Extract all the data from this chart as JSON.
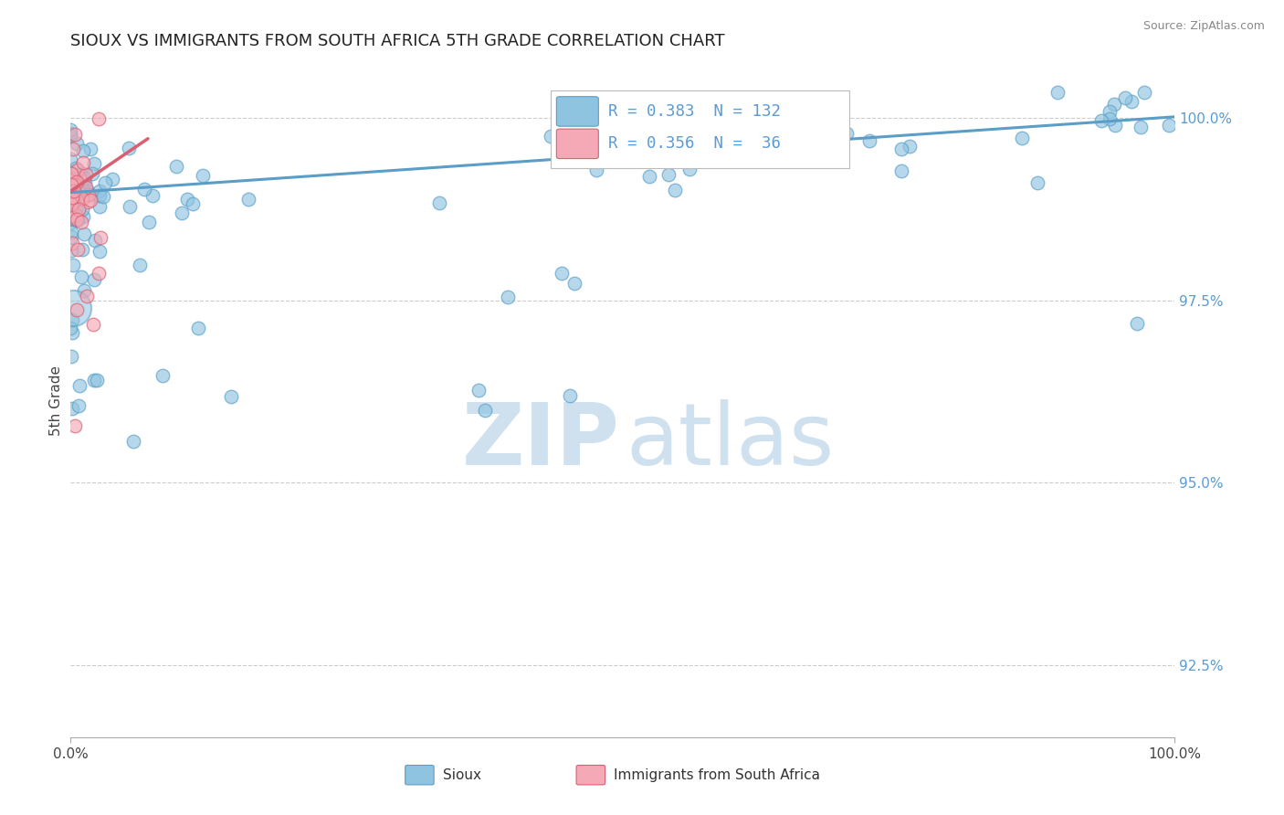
{
  "title": "SIOUX VS IMMIGRANTS FROM SOUTH AFRICA 5TH GRADE CORRELATION CHART",
  "source_text": "Source: ZipAtlas.com",
  "ylabel": "5th Grade",
  "x_min": 0.0,
  "x_max": 100.0,
  "y_min": 91.5,
  "y_max": 100.75,
  "y_tick_labels": [
    "92.5%",
    "95.0%",
    "97.5%",
    "100.0%"
  ],
  "y_tick_values": [
    92.5,
    95.0,
    97.5,
    100.0
  ],
  "sioux_color": "#8fc4e0",
  "sioux_edge": "#5a9ec8",
  "immigrants_color": "#f5a8b5",
  "immigrants_edge": "#d96070",
  "legend_line1": "R = 0.383  N = 132",
  "legend_line2": "R = 0.356  N =  36",
  "legend_color": "#5b9bd5",
  "watermark_color": "#cfe0ee",
  "background_color": "#ffffff",
  "trend_sioux_x0": 0.0,
  "trend_sioux_x1": 100.0,
  "trend_sioux_y0": 98.98,
  "trend_sioux_y1": 100.02,
  "trend_imm_x0": 0.0,
  "trend_imm_x1": 7.0,
  "trend_imm_y0": 99.0,
  "trend_imm_y1": 99.72
}
